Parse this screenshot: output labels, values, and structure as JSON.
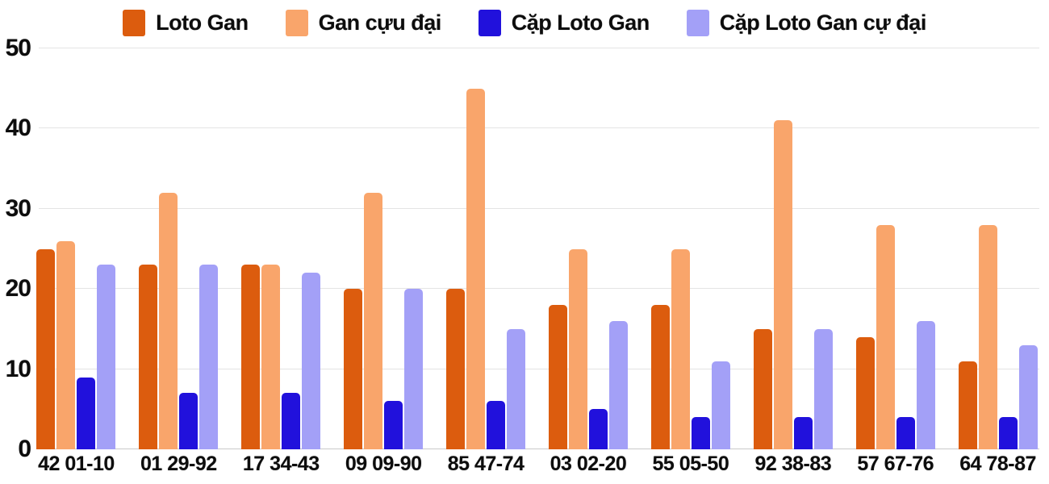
{
  "chart_data": {
    "type": "bar",
    "title": "",
    "xlabel": "",
    "ylabel": "",
    "categories": [
      "42 01-10",
      "01 29-92",
      "17 34-43",
      "09 09-90",
      "85 47-74",
      "03 02-20",
      "55 05-50",
      "92 38-83",
      "57 67-76",
      "64 78-87"
    ],
    "series": [
      {
        "name": "Loto Gan",
        "color": "#dc5c0e",
        "values": [
          25,
          23,
          23,
          20,
          20,
          18,
          18,
          15,
          14,
          11
        ]
      },
      {
        "name": "Gan cựu đại",
        "color": "#f9a56b",
        "values": [
          26,
          32,
          23,
          32,
          45,
          25,
          25,
          41,
          28,
          28
        ]
      },
      {
        "name": "Cặp Loto Gan",
        "color": "#2111dc",
        "values": [
          9,
          7,
          7,
          6,
          6,
          5,
          4,
          4,
          4,
          4
        ]
      },
      {
        "name": "Cặp Loto Gan cự đại",
        "color": "#a3a0f7",
        "values": [
          23,
          23,
          22,
          20,
          15,
          16,
          11,
          15,
          16,
          13
        ]
      }
    ],
    "ylim": [
      0,
      50
    ],
    "yticks": [
      0,
      10,
      20,
      30,
      40,
      50
    ],
    "grid": true,
    "legend_position": "top"
  },
  "colors": {
    "gridline": "#e4e4e4",
    "axis_line": "#c9c9c9",
    "text": "#0d0d0d",
    "background": "#ffffff"
  }
}
